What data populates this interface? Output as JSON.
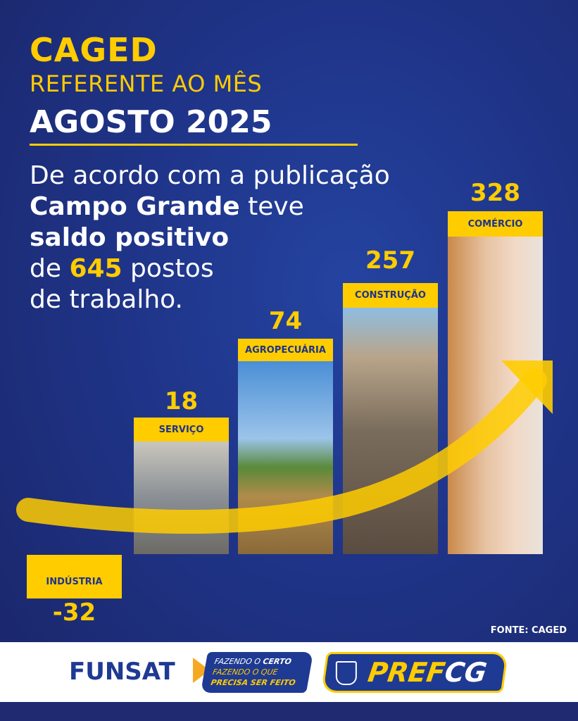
{
  "header": {
    "title": "CAGED",
    "subtitle": "REFERENTE AO MÊS",
    "month": "AGOSTO 2025"
  },
  "description": {
    "line1": "De acordo com a publicação",
    "city": "Campo Grande",
    "teve": " teve",
    "saldo": "saldo positivo",
    "de": "de ",
    "total": "645",
    "postos": " postos",
    "trabalho": "de trabalho."
  },
  "chart_data": {
    "type": "bar",
    "categories": [
      "INDÚSTRIA",
      "SERVIÇO",
      "AGROPECUÁRIA",
      "CONSTRUÇÃO",
      "COMÉRCIO"
    ],
    "values": [
      -32,
      18,
      74,
      257,
      328
    ],
    "value_labels": [
      "-32",
      "18",
      "74",
      "257",
      "328"
    ],
    "colors": {
      "label_bg": "#ffcc00",
      "label_text": "#1f3488",
      "value_text": "#ffcc00",
      "background": "#1f3488"
    },
    "annotation": "upward arrow trend"
  },
  "source": "FONTE: CAGED",
  "footer": {
    "funsat": "FUNSAT",
    "slogan1a": "FAZENDO O ",
    "slogan1b": "CERTO",
    "slogan2": "FAZENDO O QUE",
    "slogan3": "PRECISA SER FEITO",
    "pref_a": "PREF",
    "pref_b": "CG"
  }
}
